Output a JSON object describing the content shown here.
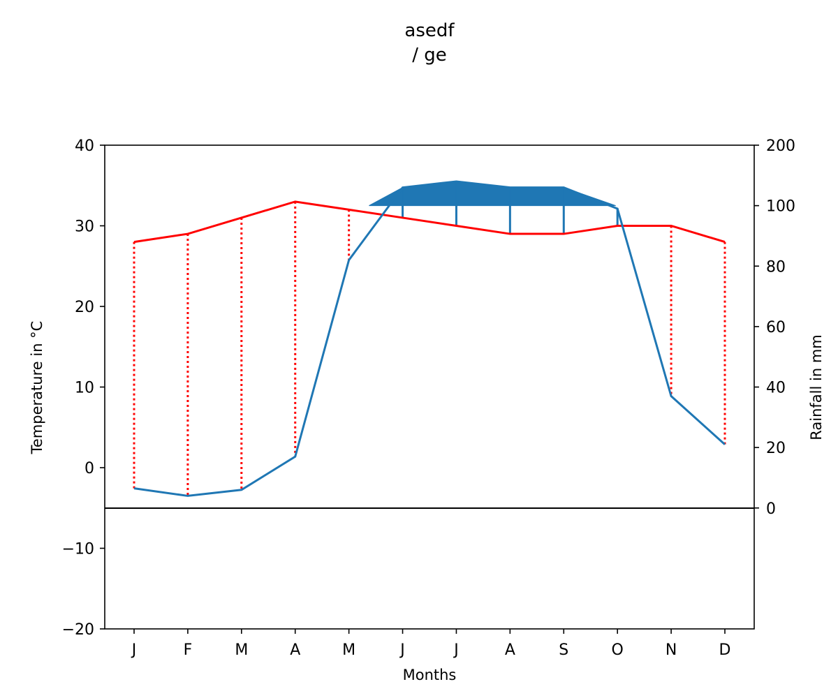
{
  "chart_data": {
    "type": "line",
    "subtype": "climate-diagram",
    "title": "asedf",
    "subtitle": "/ ge",
    "xlabel": "Months",
    "ylabel_left": "Temperature in °C",
    "ylabel_right": "Rainfall in mm",
    "categories": [
      "J",
      "F",
      "M",
      "A",
      "M",
      "J",
      "J",
      "A",
      "S",
      "O",
      "N",
      "D"
    ],
    "temperature_axis": {
      "ylim": [
        -20,
        40
      ],
      "ticks": [
        -20,
        -10,
        0,
        10,
        20,
        30,
        40
      ],
      "tick_labels": [
        "−20",
        "−10",
        "0",
        "10",
        "20",
        "30",
        "40"
      ]
    },
    "rainfall_axis": {
      "ylim": [
        -40,
        200
      ],
      "ticks": [
        0,
        20,
        40,
        60,
        80,
        100,
        200
      ],
      "tick_labels": [
        "0",
        "20",
        "40",
        "60",
        "80",
        "100",
        "200"
      ],
      "compressed_above": 100,
      "compression_factor": 0.2
    },
    "series": [
      {
        "key": "temperature",
        "axis": "left",
        "color": "#ff0000",
        "values": [
          28,
          29,
          31,
          33,
          32,
          31,
          30,
          29,
          29,
          30,
          30,
          28
        ]
      },
      {
        "key": "rainfall",
        "axis": "right",
        "color": "#1f77b4",
        "values": [
          6.5,
          4,
          6,
          17,
          82,
          130,
          140,
          130,
          130,
          99,
          37,
          21
        ]
      }
    ],
    "zero_line": true,
    "grid": false,
    "legend": false
  }
}
